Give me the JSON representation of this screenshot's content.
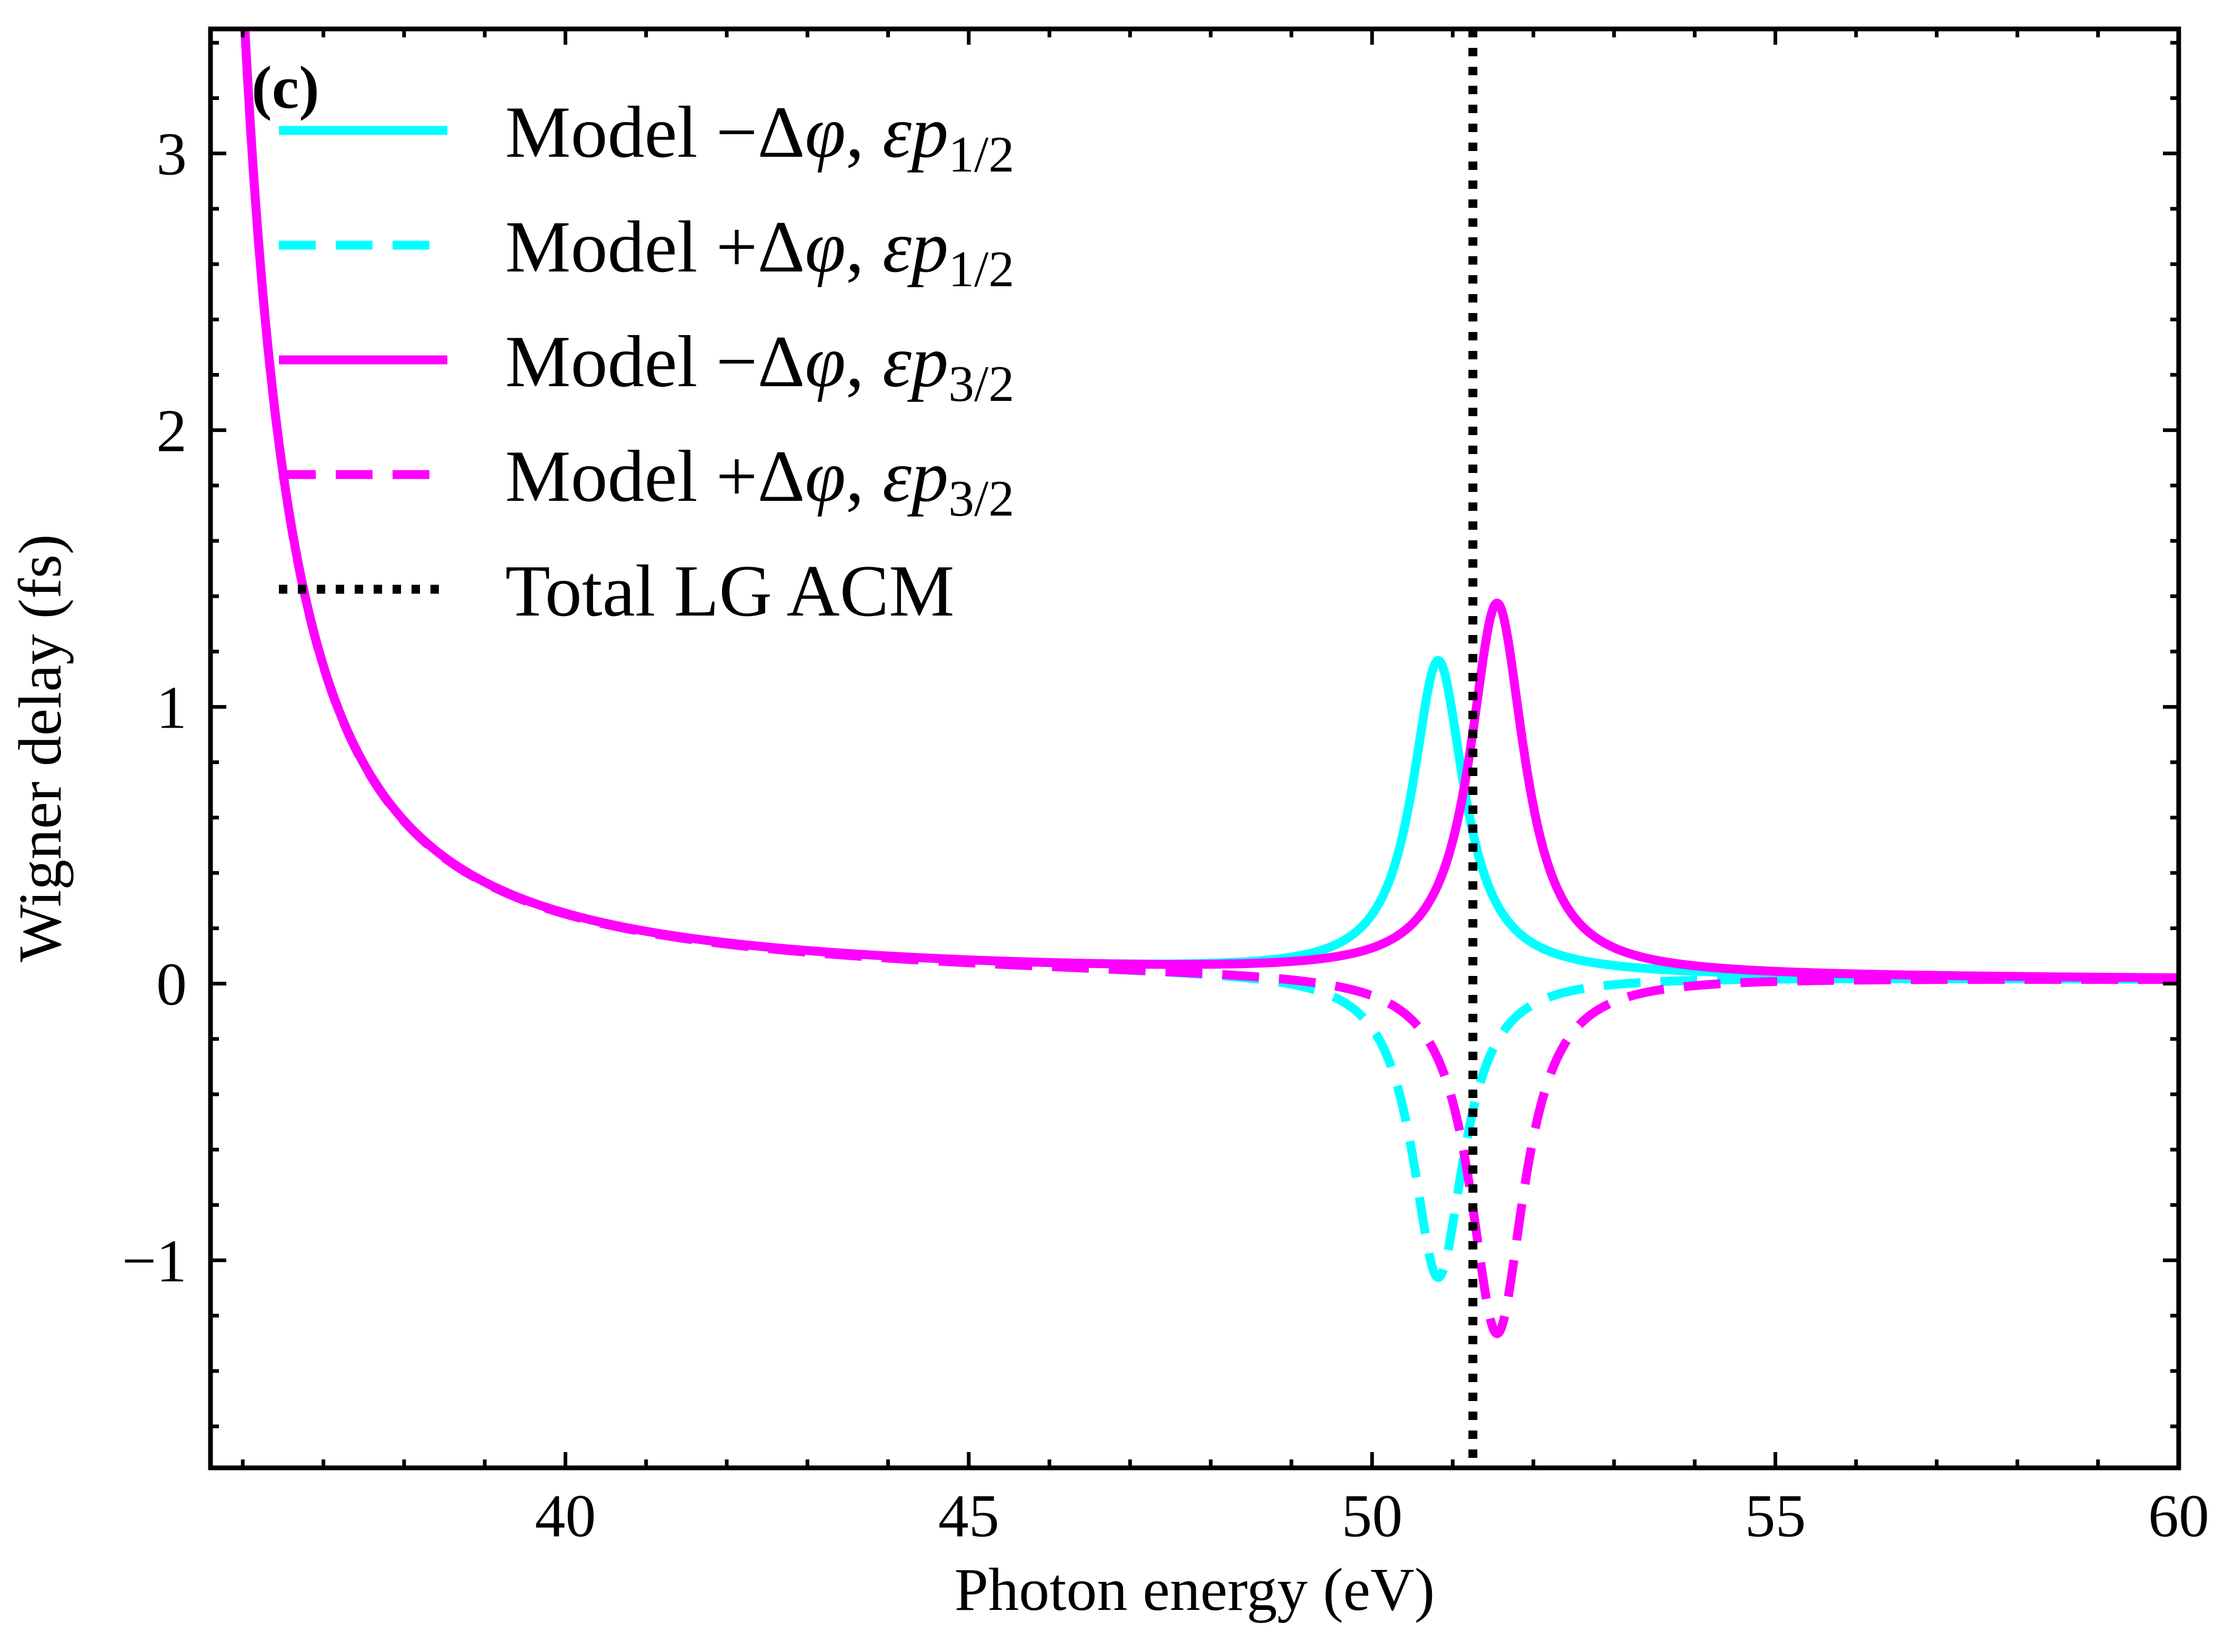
{
  "chart_data": {
    "type": "line",
    "panel_label": "(c)",
    "xlabel": "Photon energy (eV)",
    "ylabel": "Wigner delay (fs)",
    "xlim": [
      35.6,
      60
    ],
    "ylim": [
      -1.75,
      3.45
    ],
    "x_ticks": [
      40,
      45,
      50,
      55,
      60
    ],
    "x_tick_labels": [
      "40",
      "45",
      "50",
      "55",
      "60"
    ],
    "y_ticks": [
      -1,
      0,
      1,
      2,
      3
    ],
    "y_tick_labels": [
      "−1",
      "0",
      "1",
      "2",
      "3"
    ],
    "legend_position": "upper-left",
    "series": [
      {
        "key": "p12_minus",
        "name_prefix": "Model −Δ",
        "name_phi": "φ",
        "name_sep": ", ",
        "name_eps": "εp",
        "name_sub": "1/2",
        "color": "#00ffff",
        "style": "solid",
        "background": {
          "A": 3.6,
          "x0": 35.0,
          "n": 1.65
        },
        "resonance": {
          "E0": 50.82,
          "gamma": 0.39,
          "amp": 1.13
        }
      },
      {
        "key": "p12_plus",
        "name_prefix": "Model +Δ",
        "name_phi": "φ",
        "name_sep": ", ",
        "name_eps": "εp",
        "name_sub": "1/2",
        "color": "#00ffff",
        "style": "dashed",
        "background": {
          "A": 3.6,
          "x0": 35.0,
          "n": 1.65
        },
        "resonance": {
          "E0": 50.82,
          "gamma": 0.39,
          "amp": -1.1
        }
      },
      {
        "key": "p32_minus",
        "name_prefix": "Model −Δ",
        "name_phi": "φ",
        "name_sep": ", ",
        "name_eps": "εp",
        "name_sub": "3/2",
        "color": "#ff00ff",
        "style": "solid",
        "background": {
          "A": 3.6,
          "x0": 35.0,
          "n": 1.65
        },
        "resonance": {
          "E0": 51.55,
          "gamma": 0.41,
          "amp": 1.34
        }
      },
      {
        "key": "p32_plus",
        "name_prefix": "Model +Δ",
        "name_phi": "φ",
        "name_sep": ", ",
        "name_eps": "εp",
        "name_sub": "3/2",
        "color": "#ff00ff",
        "style": "dashed",
        "background": {
          "A": 3.6,
          "x0": 35.0,
          "n": 1.65
        },
        "resonance": {
          "E0": 51.55,
          "gamma": 0.41,
          "amp": -1.3
        }
      }
    ],
    "reference_line": {
      "name": "Total LG ACM",
      "x": 51.25,
      "color": "#000000",
      "style": "dotted"
    }
  }
}
